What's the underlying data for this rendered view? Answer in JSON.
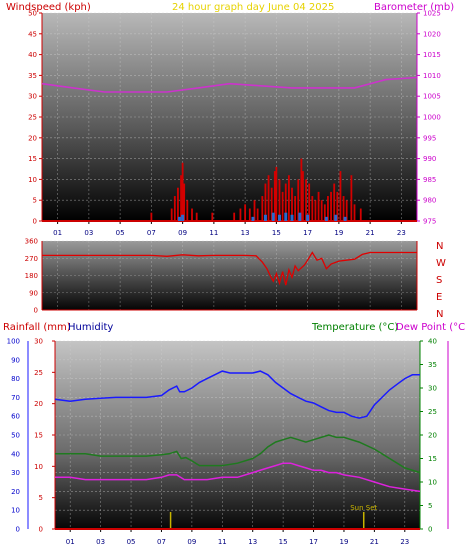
{
  "header": {
    "left_title": "Windspeed (kph)",
    "center_title": "24 hour graph day   June 04 2025",
    "right_title": "Barometer (mb)"
  },
  "colors": {
    "wind": "#d40000",
    "baro": "#cc33cc",
    "dir": "#e00000",
    "humidity": "#1a1aff",
    "temp": "#1f7a1f",
    "dew": "#dd22dd",
    "rain": "#cc0000",
    "sunset": "#c8b400",
    "title_center": "#e6d200",
    "left_axis": "#cc0000",
    "right_axis": "#cc00cc",
    "temp_axis": "#008000",
    "hum_axis": "#0000cc"
  },
  "chart_data": [
    {
      "type": "bar",
      "name": "wind-barometer",
      "title": "Windspeed (kph)",
      "right_title": "Barometer (mb)",
      "x_ticks": [
        "01",
        "03",
        "05",
        "07",
        "09",
        "11",
        "13",
        "15",
        "17",
        "19",
        "21",
        "23"
      ],
      "y_left_ticks": [
        "0",
        "5",
        "10",
        "15",
        "20",
        "25",
        "30",
        "35",
        "40",
        "45",
        "50"
      ],
      "y_right_ticks": [
        "975",
        "980",
        "985",
        "990",
        "995",
        "1000",
        "1005",
        "1010",
        "1015",
        "1020",
        "1025"
      ],
      "ylim_left": [
        0,
        50
      ],
      "ylim_right": [
        975,
        1025
      ],
      "xlim": [
        0,
        24
      ],
      "wind_gust_bars": [
        [
          7.0,
          2
        ],
        [
          8.3,
          3
        ],
        [
          8.5,
          6
        ],
        [
          8.7,
          8
        ],
        [
          8.9,
          11
        ],
        [
          9.0,
          14
        ],
        [
          9.1,
          9
        ],
        [
          9.3,
          5
        ],
        [
          9.6,
          3
        ],
        [
          9.9,
          2
        ],
        [
          10.9,
          2
        ],
        [
          12.3,
          2
        ],
        [
          12.7,
          3
        ],
        [
          13.0,
          4
        ],
        [
          13.3,
          3
        ],
        [
          13.6,
          5
        ],
        [
          13.8,
          3
        ],
        [
          14.1,
          6
        ],
        [
          14.3,
          9
        ],
        [
          14.5,
          11
        ],
        [
          14.7,
          8
        ],
        [
          14.9,
          12
        ],
        [
          15.0,
          13
        ],
        [
          15.2,
          10
        ],
        [
          15.4,
          7
        ],
        [
          15.6,
          9
        ],
        [
          15.8,
          11
        ],
        [
          16.0,
          8
        ],
        [
          16.2,
          6
        ],
        [
          16.4,
          10
        ],
        [
          16.6,
          15
        ],
        [
          16.7,
          12
        ],
        [
          16.9,
          10
        ],
        [
          17.1,
          9
        ],
        [
          17.3,
          6
        ],
        [
          17.5,
          5
        ],
        [
          17.7,
          7
        ],
        [
          17.9,
          5
        ],
        [
          18.1,
          4
        ],
        [
          18.3,
          6
        ],
        [
          18.5,
          7
        ],
        [
          18.7,
          9
        ],
        [
          18.9,
          7
        ],
        [
          19.1,
          12
        ],
        [
          19.3,
          6
        ],
        [
          19.5,
          5
        ],
        [
          19.8,
          11
        ],
        [
          20.0,
          4
        ],
        [
          20.4,
          3
        ]
      ],
      "wind_avg_bars": [
        [
          8.8,
          1
        ],
        [
          9.0,
          1.5
        ],
        [
          13.5,
          1
        ],
        [
          14.3,
          1.5
        ],
        [
          14.8,
          2
        ],
        [
          15.2,
          1.5
        ],
        [
          15.6,
          2
        ],
        [
          16.0,
          1.5
        ],
        [
          16.5,
          2
        ],
        [
          17.0,
          1.5
        ],
        [
          18.2,
          1
        ],
        [
          18.8,
          1.5
        ],
        [
          19.4,
          1
        ]
      ],
      "barometer": [
        [
          0,
          1008
        ],
        [
          2,
          1007
        ],
        [
          4,
          1006
        ],
        [
          6,
          1006
        ],
        [
          8,
          1006
        ],
        [
          10,
          1007
        ],
        [
          12,
          1008
        ],
        [
          14,
          1007.5
        ],
        [
          16,
          1007
        ],
        [
          18,
          1007
        ],
        [
          20,
          1007
        ],
        [
          22,
          1009
        ],
        [
          24,
          1009.5
        ]
      ]
    },
    {
      "type": "line",
      "name": "wind-direction",
      "y_ticks": [
        "0",
        "90",
        "180",
        "270",
        "360"
      ],
      "direction_labels": [
        "N",
        "W",
        "S",
        "E",
        "N"
      ],
      "ylim": [
        0,
        360
      ],
      "xlim": [
        0,
        24
      ],
      "direction": [
        [
          0,
          285
        ],
        [
          7,
          285
        ],
        [
          8,
          280
        ],
        [
          9,
          288
        ],
        [
          10,
          283
        ],
        [
          11,
          285
        ],
        [
          12,
          285
        ],
        [
          13,
          285
        ],
        [
          13.7,
          283
        ],
        [
          14.1,
          250
        ],
        [
          14.4,
          215
        ],
        [
          14.6,
          180
        ],
        [
          14.8,
          150
        ],
        [
          15.0,
          190
        ],
        [
          15.2,
          140
        ],
        [
          15.4,
          200
        ],
        [
          15.6,
          130
        ],
        [
          15.8,
          210
        ],
        [
          16.0,
          170
        ],
        [
          16.2,
          230
        ],
        [
          16.4,
          205
        ],
        [
          16.8,
          235
        ],
        [
          17.0,
          260
        ],
        [
          17.3,
          300
        ],
        [
          17.6,
          260
        ],
        [
          17.9,
          270
        ],
        [
          18.2,
          215
        ],
        [
          18.5,
          240
        ],
        [
          19.0,
          255
        ],
        [
          20.0,
          265
        ],
        [
          20.5,
          290
        ],
        [
          21.0,
          300
        ],
        [
          22,
          300
        ],
        [
          24,
          300
        ]
      ]
    },
    {
      "type": "line",
      "name": "temp-humidity-rain",
      "left_title": "Rainfall (mm)",
      "left_title2": "Humidity",
      "right_title": "Temperature (°C)",
      "right_title2": "Dew Point (°C)",
      "x_ticks": [
        "01",
        "03",
        "05",
        "07",
        "09",
        "11",
        "13",
        "15",
        "17",
        "19",
        "21",
        "23"
      ],
      "humidity_ticks": [
        "0",
        "10",
        "20",
        "30",
        "40",
        "50",
        "60",
        "70",
        "80",
        "90",
        "100"
      ],
      "rain_ticks": [
        "0",
        "5",
        "10",
        "15",
        "20",
        "25",
        "30"
      ],
      "temp_ticks": [
        "0",
        "5",
        "10",
        "15",
        "20",
        "25",
        "30",
        "35",
        "40"
      ],
      "ylim_humidity": [
        0,
        100
      ],
      "ylim_rain": [
        0,
        30
      ],
      "ylim_temp": [
        0,
        40
      ],
      "xlim": [
        0,
        24
      ],
      "annotation": "Sun Set",
      "sunset_x": 20.3,
      "sunrise_x": 7.6,
      "humidity": [
        [
          0,
          69
        ],
        [
          1,
          68
        ],
        [
          2,
          69
        ],
        [
          3,
          69.5
        ],
        [
          4,
          70
        ],
        [
          5,
          70
        ],
        [
          6,
          70
        ],
        [
          7,
          71
        ],
        [
          7.5,
          74
        ],
        [
          8,
          76
        ],
        [
          8.2,
          73
        ],
        [
          8.5,
          73
        ],
        [
          9,
          75
        ],
        [
          9.5,
          78
        ],
        [
          10,
          80
        ],
        [
          10.5,
          82
        ],
        [
          11,
          84
        ],
        [
          11.5,
          83
        ],
        [
          12,
          83
        ],
        [
          13,
          83
        ],
        [
          13.5,
          84
        ],
        [
          14,
          82
        ],
        [
          14.5,
          78
        ],
        [
          15,
          75
        ],
        [
          15.5,
          72
        ],
        [
          16,
          70
        ],
        [
          16.5,
          68
        ],
        [
          17,
          67
        ],
        [
          17.5,
          65
        ],
        [
          18,
          63
        ],
        [
          18.5,
          62
        ],
        [
          19,
          62
        ],
        [
          19.5,
          60
        ],
        [
          20,
          59
        ],
        [
          20.5,
          60
        ],
        [
          21,
          66
        ],
        [
          21.5,
          70
        ],
        [
          22,
          74
        ],
        [
          22.5,
          77
        ],
        [
          23,
          80
        ],
        [
          23.5,
          82
        ],
        [
          24,
          82
        ]
      ],
      "temperature": [
        [
          0,
          16
        ],
        [
          1,
          16
        ],
        [
          2,
          16
        ],
        [
          3,
          15.5
        ],
        [
          4,
          15.5
        ],
        [
          5,
          15.5
        ],
        [
          6,
          15.5
        ],
        [
          7,
          15.8
        ],
        [
          7.5,
          16
        ],
        [
          8,
          16.5
        ],
        [
          8.3,
          15
        ],
        [
          8.6,
          15.2
        ],
        [
          9,
          14.5
        ],
        [
          9.5,
          13.5
        ],
        [
          10,
          13.5
        ],
        [
          11,
          13.5
        ],
        [
          12,
          14
        ],
        [
          13,
          15
        ],
        [
          13.5,
          16
        ],
        [
          14,
          17.5
        ],
        [
          14.5,
          18.5
        ],
        [
          15,
          19
        ],
        [
          15.5,
          19.5
        ],
        [
          16,
          19
        ],
        [
          16.5,
          18.5
        ],
        [
          17,
          19
        ],
        [
          17.5,
          19.5
        ],
        [
          18,
          20
        ],
        [
          18.5,
          19.5
        ],
        [
          19,
          19.5
        ],
        [
          20,
          18.5
        ],
        [
          21,
          17
        ],
        [
          22,
          15
        ],
        [
          23,
          13
        ],
        [
          24,
          12
        ]
      ],
      "dewpoint": [
        [
          0,
          11
        ],
        [
          1,
          11
        ],
        [
          2,
          10.5
        ],
        [
          3,
          10.5
        ],
        [
          4,
          10.5
        ],
        [
          5,
          10.5
        ],
        [
          6,
          10.5
        ],
        [
          7,
          11
        ],
        [
          7.5,
          11.5
        ],
        [
          8,
          11.5
        ],
        [
          8.5,
          10.5
        ],
        [
          9,
          10.5
        ],
        [
          10,
          10.5
        ],
        [
          11,
          11
        ],
        [
          12,
          11
        ],
        [
          13,
          12
        ],
        [
          14,
          13
        ],
        [
          14.5,
          13.5
        ],
        [
          15,
          14
        ],
        [
          15.5,
          14
        ],
        [
          16,
          13.5
        ],
        [
          16.5,
          13
        ],
        [
          17,
          12.5
        ],
        [
          17.5,
          12.5
        ],
        [
          18,
          12
        ],
        [
          18.5,
          12
        ],
        [
          19,
          11.5
        ],
        [
          20,
          11
        ],
        [
          21,
          10
        ],
        [
          22,
          9
        ],
        [
          23,
          8.5
        ],
        [
          24,
          8
        ]
      ],
      "rain": [
        [
          0,
          0
        ],
        [
          24,
          0
        ]
      ]
    }
  ]
}
